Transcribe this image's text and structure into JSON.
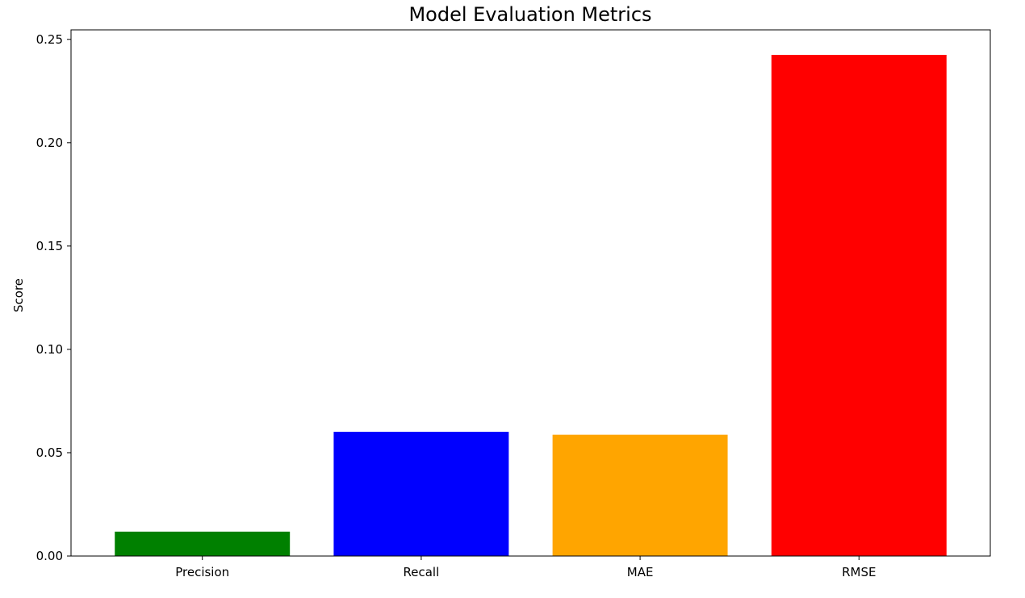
{
  "chart_data": {
    "type": "bar",
    "title": "Model Evaluation Metrics",
    "xlabel": "",
    "ylabel": "Score",
    "categories": [
      "Precision",
      "Recall",
      "MAE",
      "RMSE"
    ],
    "values": [
      0.0118,
      0.0601,
      0.0587,
      0.2425
    ],
    "colors": [
      "#008000",
      "#0000ff",
      "#ffa500",
      "#ff0000"
    ],
    "ylim": [
      0,
      0.2546
    ],
    "yticks": [
      0.0,
      0.05,
      0.1,
      0.15,
      0.2,
      0.25
    ],
    "ytick_labels": [
      "0.00",
      "0.05",
      "0.10",
      "0.15",
      "0.20",
      "0.25"
    ],
    "grid": false,
    "legend": "none"
  }
}
